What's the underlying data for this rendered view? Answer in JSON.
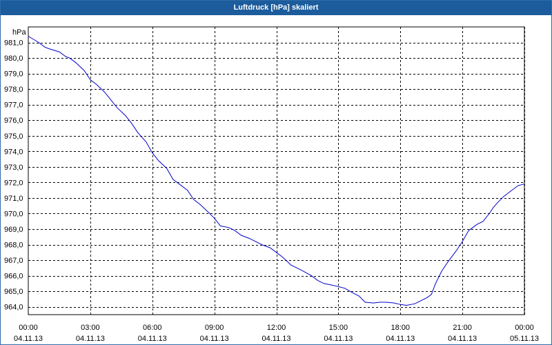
{
  "window": {
    "title": "Luftdruck [hPa] skaliert"
  },
  "chart_data": {
    "type": "line",
    "title": "Luftdruck [hPa] skaliert",
    "ylabel": "hPa",
    "ylim": [
      963.5,
      982.0
    ],
    "yticks": [
      964,
      965,
      966,
      967,
      968,
      969,
      970,
      971,
      972,
      973,
      974,
      975,
      976,
      977,
      978,
      979,
      980,
      981
    ],
    "ytick_labels": [
      "964,0",
      "965,0",
      "966,0",
      "967,0",
      "968,0",
      "969,0",
      "970,0",
      "971,0",
      "972,0",
      "973,0",
      "974,0",
      "975,0",
      "976,0",
      "977,0",
      "978,0",
      "979,0",
      "980,0",
      "981,0"
    ],
    "xlim": [
      0,
      24
    ],
    "xticks": [
      0,
      3,
      6,
      9,
      12,
      15,
      18,
      21,
      24
    ],
    "xtick_labels": [
      [
        "00:00",
        "04.11.13"
      ],
      [
        "03:00",
        "04.11.13"
      ],
      [
        "06:00",
        "04.11.13"
      ],
      [
        "09:00",
        "04.11.13"
      ],
      [
        "12:00",
        "04.11.13"
      ],
      [
        "15:00",
        "04.11.13"
      ],
      [
        "18:00",
        "04.11.13"
      ],
      [
        "21:00",
        "04.11.13"
      ],
      [
        "00:00",
        "05.11.13"
      ]
    ],
    "grid": true,
    "colors": {
      "line": "#0000cc",
      "grid": "#000000",
      "title_bar": "#1c5c9c"
    },
    "series": [
      {
        "x": [
          0,
          0.5,
          0.8,
          1.0,
          1.5,
          1.8,
          2.0,
          2.3,
          2.7,
          3.0,
          3.3,
          3.7,
          4.0,
          4.3,
          4.7,
          5.0,
          5.3,
          5.7,
          6.0,
          6.3,
          6.7,
          7.0,
          7.3,
          7.7,
          8.0,
          8.3,
          8.7,
          9.0,
          9.3,
          9.7,
          10.0,
          10.3,
          10.7,
          11.0,
          11.3,
          11.7,
          12.0,
          12.3,
          12.7,
          13.0,
          13.3,
          13.7,
          14.0,
          14.3,
          14.7,
          15.0,
          15.3,
          15.7,
          16.0,
          16.3,
          16.7,
          17.0,
          17.3,
          17.7,
          18.0,
          18.3,
          18.7,
          19.0,
          19.3,
          19.5,
          19.7,
          20.0,
          20.3,
          20.7,
          21.0,
          21.3,
          21.5,
          21.7,
          22.0,
          22.3,
          22.5,
          22.7,
          23.0,
          23.3,
          23.7,
          24.0
        ],
        "y": [
          981.4,
          981.0,
          980.7,
          980.6,
          980.4,
          980.1,
          980.0,
          979.7,
          979.2,
          978.6,
          978.3,
          977.8,
          977.3,
          976.8,
          976.3,
          975.8,
          975.2,
          974.6,
          973.9,
          973.4,
          972.9,
          972.2,
          971.9,
          971.5,
          970.9,
          970.6,
          970.1,
          969.7,
          969.2,
          969.1,
          968.9,
          968.6,
          968.4,
          968.2,
          968.0,
          967.8,
          967.5,
          967.2,
          966.7,
          966.5,
          966.3,
          966.0,
          965.7,
          965.5,
          965.4,
          965.3,
          965.2,
          964.9,
          964.7,
          964.3,
          964.25,
          964.3,
          964.3,
          964.25,
          964.15,
          964.1,
          964.2,
          964.4,
          964.6,
          964.8,
          965.5,
          966.3,
          966.9,
          967.6,
          968.2,
          968.9,
          969.1,
          969.3,
          969.5,
          970.0,
          970.4,
          970.7,
          971.1,
          971.4,
          971.8,
          971.9
        ]
      }
    ]
  }
}
